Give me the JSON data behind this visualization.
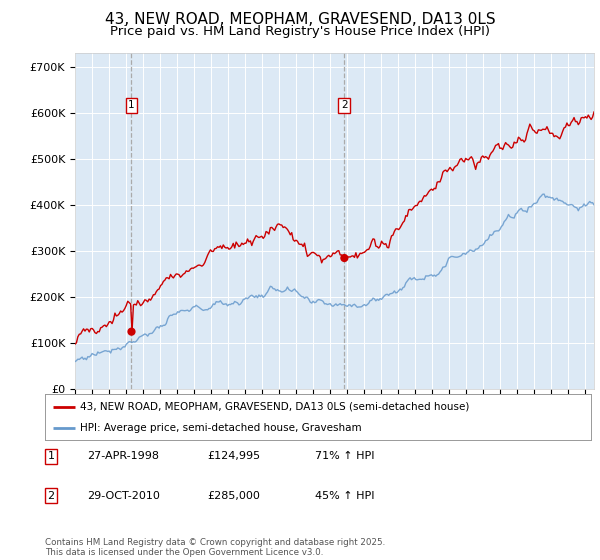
{
  "title": "43, NEW ROAD, MEOPHAM, GRAVESEND, DA13 0LS",
  "subtitle": "Price paid vs. HM Land Registry's House Price Index (HPI)",
  "title_fontsize": 11,
  "subtitle_fontsize": 9.5,
  "ylabel_ticks": [
    "£0",
    "£100K",
    "£200K",
    "£300K",
    "£400K",
    "£500K",
    "£600K",
    "£700K"
  ],
  "ytick_vals": [
    0,
    100000,
    200000,
    300000,
    400000,
    500000,
    600000,
    700000
  ],
  "ylim": [
    0,
    730000
  ],
  "xlim_start": 1995.0,
  "xlim_end": 2025.5,
  "plot_bg_color": "#dce9f5",
  "line1_color": "#cc0000",
  "line2_color": "#6699cc",
  "line1_label": "43, NEW ROAD, MEOPHAM, GRAVESEND, DA13 0LS (semi-detached house)",
  "line2_label": "HPI: Average price, semi-detached house, Gravesham",
  "purchase1_year": 1998.32,
  "purchase1_price": 124995,
  "purchase2_year": 2010.83,
  "purchase2_price": 285000,
  "footnote": "Contains HM Land Registry data © Crown copyright and database right 2025.\nThis data is licensed under the Open Government Licence v3.0.",
  "table_rows": [
    [
      "1",
      "27-APR-1998",
      "£124,995",
      "71% ↑ HPI"
    ],
    [
      "2",
      "29-OCT-2010",
      "£285,000",
      "45% ↑ HPI"
    ]
  ]
}
